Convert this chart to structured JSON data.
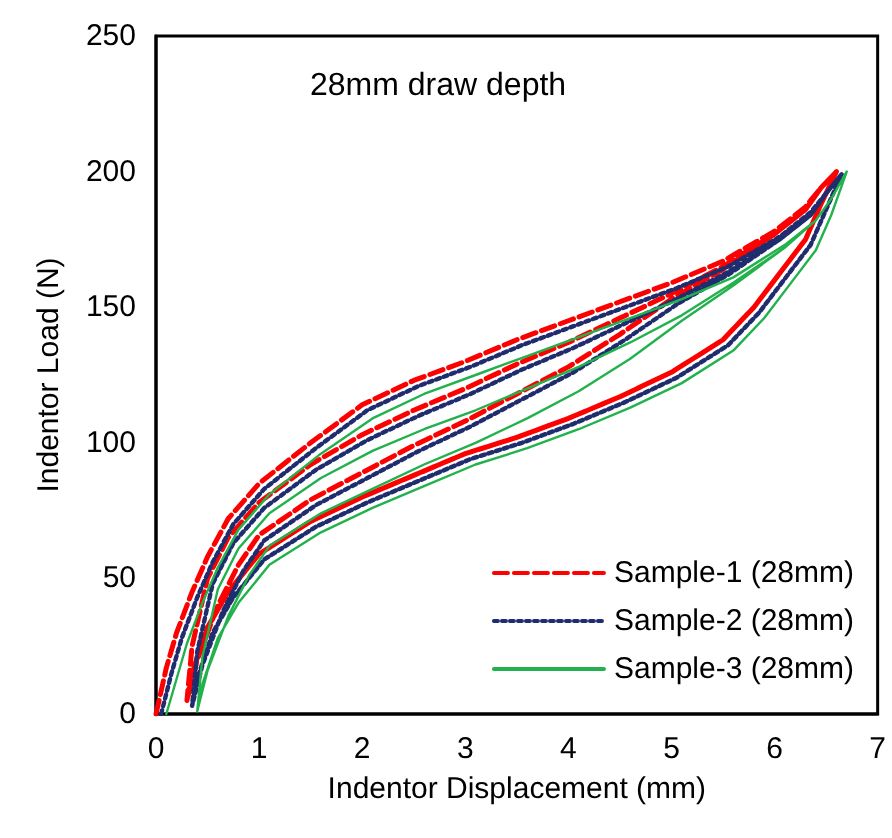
{
  "chart_data": {
    "type": "line",
    "title": "28mm draw depth",
    "xlabel": "Indentor Displacement (mm)",
    "ylabel": "Indentor Load (N)",
    "xlim": [
      0,
      7
    ],
    "xticks": [
      0,
      1,
      2,
      3,
      4,
      5,
      6,
      7
    ],
    "ylim": [
      0,
      250
    ],
    "yticks": [
      0,
      50,
      100,
      150,
      200,
      250
    ],
    "grid": false,
    "legend": "bottom right",
    "marker": "none",
    "series": [
      {
        "name": "Sample-1 (28mm)",
        "color": "#ff0000",
        "line_style": "dashed",
        "x": [
          0,
          0.1,
          0.2,
          0.35,
          0.5,
          0.7,
          1,
          1.5,
          2,
          2.5,
          3,
          3.5,
          4,
          4.5,
          5,
          5.5,
          6,
          6.3,
          6.45,
          6.6,
          6.45,
          6.3,
          6.1,
          5.8,
          5.5,
          5,
          4.5,
          4,
          3.5,
          3,
          2.5,
          2,
          1.5,
          1,
          0.7,
          0.5,
          0.35,
          0.3,
          0.35,
          0.5,
          0.7,
          1,
          1.5,
          2,
          2.5,
          3,
          3.5,
          4,
          4.5,
          5,
          5.5,
          6,
          6.3,
          6.45,
          6.6,
          6.45,
          6.3,
          6.1,
          5.8,
          5.5,
          5,
          4.5,
          4,
          3.5,
          3,
          2.5,
          2,
          1.5,
          1,
          0.7,
          0.5,
          0.35,
          0.3,
          0.4,
          0.6,
          0.8,
          1,
          1.5,
          2,
          2.5,
          3,
          3.5,
          4,
          4.5,
          5,
          5.5,
          6,
          6.3,
          6.45,
          6.6
        ],
        "values": [
          0,
          17,
          30,
          45,
          58,
          72,
          85,
          100,
          114,
          123,
          130,
          138,
          145,
          152,
          159,
          167,
          178,
          187,
          194,
          200,
          188,
          175,
          165,
          150,
          138,
          126,
          117,
          109,
          102,
          96,
          88,
          80,
          71,
          59,
          45,
          32,
          15,
          5,
          25,
          50,
          65,
          78,
          92,
          103,
          112,
          120,
          129,
          137,
          146,
          155,
          165,
          177,
          186,
          194,
          200,
          188,
          175,
          165,
          150,
          138,
          126,
          117,
          109,
          102,
          96,
          88,
          80,
          71,
          59,
          45,
          32,
          15,
          5,
          20,
          40,
          55,
          66,
          79,
          89,
          99,
          108,
          118,
          128,
          140,
          153,
          164,
          177,
          186,
          194,
          200
        ]
      },
      {
        "name": "Sample-2 (28mm)",
        "color": "#1f2d6e",
        "line_style": "dotted",
        "x": [
          0.05,
          0.15,
          0.25,
          0.4,
          0.55,
          0.75,
          1.05,
          1.55,
          2.05,
          2.55,
          3.05,
          3.55,
          4.05,
          4.55,
          5.05,
          5.55,
          6.05,
          6.35,
          6.5,
          6.65,
          6.5,
          6.35,
          6.15,
          5.85,
          5.55,
          5.05,
          4.55,
          4.05,
          3.55,
          3.05,
          2.55,
          2.05,
          1.55,
          1.05,
          0.75,
          0.55,
          0.4,
          0.35,
          0.4,
          0.55,
          0.75,
          1.05,
          1.55,
          2.05,
          2.55,
          3.05,
          3.55,
          4.05,
          4.55,
          5.05,
          5.55,
          6.05,
          6.35,
          6.5,
          6.65,
          6.5,
          6.35,
          6.15,
          5.85,
          5.55,
          5.05,
          4.55,
          4.05,
          3.55,
          3.05,
          2.55,
          2.05,
          1.55,
          1.05,
          0.75,
          0.55,
          0.4,
          0.35,
          0.45,
          0.65,
          0.85,
          1.05,
          1.55,
          2.05,
          2.55,
          3.05,
          3.55,
          4.05,
          4.55,
          5.05,
          5.55,
          6.05,
          6.35,
          6.5,
          6.65
        ],
        "values": [
          0,
          15,
          28,
          43,
          56,
          70,
          83,
          98,
          112,
          121,
          128,
          136,
          143,
          150,
          157,
          165,
          176,
          185,
          192,
          199,
          186,
          173,
          163,
          148,
          136,
          124,
          115,
          107,
          100,
          94,
          86,
          78,
          69,
          57,
          43,
          30,
          13,
          3,
          23,
          48,
          63,
          76,
          90,
          101,
          110,
          118,
          127,
          135,
          144,
          153,
          163,
          175,
          184,
          192,
          199,
          186,
          173,
          163,
          148,
          136,
          124,
          115,
          107,
          100,
          94,
          86,
          78,
          69,
          57,
          43,
          30,
          13,
          3,
          18,
          38,
          53,
          64,
          77,
          87,
          97,
          106,
          116,
          126,
          138,
          151,
          162,
          175,
          184,
          192,
          199
        ]
      },
      {
        "name": "Sample-3 (28mm)",
        "color": "#22b14c",
        "line_style": "solid",
        "x": [
          0.1,
          0.2,
          0.3,
          0.45,
          0.6,
          0.8,
          1.1,
          1.6,
          2.1,
          2.6,
          3.1,
          3.6,
          4.1,
          4.6,
          5.1,
          5.6,
          6.1,
          6.4,
          6.55,
          6.7,
          6.55,
          6.4,
          6.2,
          5.9,
          5.6,
          5.1,
          4.6,
          4.1,
          3.6,
          3.1,
          2.6,
          2.1,
          1.6,
          1.1,
          0.8,
          0.6,
          0.45,
          0.4,
          0.45,
          0.6,
          0.8,
          1.1,
          1.6,
          2.1,
          2.6,
          3.1,
          3.6,
          4.1,
          4.6,
          5.1,
          5.6,
          6.1,
          6.4,
          6.55,
          6.7,
          6.55,
          6.4,
          6.2,
          5.9,
          5.6,
          5.1,
          4.6,
          4.1,
          3.6,
          3.1,
          2.6,
          2.1,
          1.6,
          1.1,
          0.8,
          0.6,
          0.45,
          0.4,
          0.5,
          0.7,
          0.9,
          1.1,
          1.6,
          2.1,
          2.6,
          3.1,
          3.6,
          4.1,
          4.6,
          5.1,
          5.6,
          6.1,
          6.4,
          6.55,
          6.7
        ],
        "values": [
          0,
          13,
          26,
          41,
          54,
          68,
          81,
          96,
          109,
          118,
          125,
          132,
          139,
          146,
          153,
          161,
          173,
          182,
          190,
          200,
          184,
          171,
          161,
          146,
          134,
          122,
          113,
          105,
          98,
          92,
          84,
          76,
          67,
          55,
          41,
          28,
          11,
          1,
          21,
          46,
          61,
          74,
          87,
          97,
          105,
          112,
          120,
          128,
          137,
          147,
          159,
          172,
          182,
          190,
          200,
          184,
          171,
          161,
          146,
          134,
          122,
          113,
          105,
          98,
          92,
          84,
          76,
          67,
          55,
          41,
          28,
          11,
          1,
          16,
          36,
          51,
          62,
          74,
          83,
          92,
          100,
          109,
          119,
          131,
          145,
          158,
          172,
          182,
          190,
          200
        ]
      }
    ]
  }
}
